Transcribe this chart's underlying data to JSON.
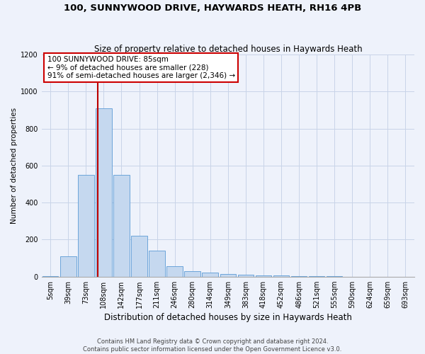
{
  "title": "100, SUNNYWOOD DRIVE, HAYWARDS HEATH, RH16 4PB",
  "subtitle": "Size of property relative to detached houses in Haywards Heath",
  "xlabel": "Distribution of detached houses by size in Haywards Heath",
  "ylabel": "Number of detached properties",
  "footer_line1": "Contains HM Land Registry data © Crown copyright and database right 2024.",
  "footer_line2": "Contains public sector information licensed under the Open Government Licence v3.0.",
  "bin_labels": [
    "5sqm",
    "39sqm",
    "73sqm",
    "108sqm",
    "142sqm",
    "177sqm",
    "211sqm",
    "246sqm",
    "280sqm",
    "314sqm",
    "349sqm",
    "383sqm",
    "418sqm",
    "452sqm",
    "486sqm",
    "521sqm",
    "555sqm",
    "590sqm",
    "624sqm",
    "659sqm",
    "693sqm"
  ],
  "bar_values": [
    2,
    110,
    550,
    910,
    550,
    220,
    140,
    55,
    30,
    20,
    15,
    10,
    8,
    5,
    2,
    1,
    1,
    0,
    0,
    0,
    0
  ],
  "bar_color": "#c5d8ef",
  "bar_edge_color": "#5b9bd5",
  "grid_color": "#c8d4e8",
  "vline_x": 2.68,
  "vline_color": "#bb0000",
  "annotation_text": "100 SUNNYWOOD DRIVE: 85sqm\n← 9% of detached houses are smaller (228)\n91% of semi-detached houses are larger (2,346) →",
  "annotation_box_color": "#cc0000",
  "ylim": [
    0,
    1200
  ],
  "yticks": [
    0,
    200,
    400,
    600,
    800,
    1000,
    1200
  ],
  "background_color": "#eef2fb",
  "plot_bg_color": "#eef2fb",
  "title_fontsize": 9.5,
  "subtitle_fontsize": 8.5,
  "xlabel_fontsize": 8.5,
  "ylabel_fontsize": 7.5,
  "tick_fontsize": 7,
  "annotation_fontsize": 7.5,
  "footer_fontsize": 6.0
}
